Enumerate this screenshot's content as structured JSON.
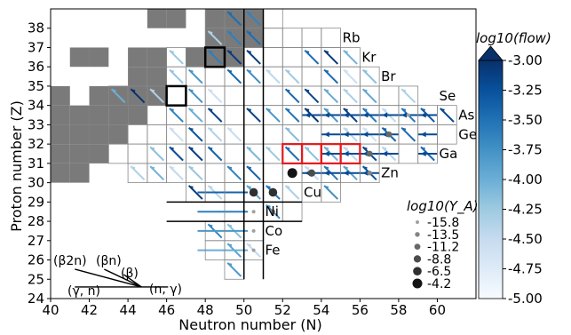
{
  "chart_data": {
    "type": "heatmap",
    "xlabel": "Neutron number (N)",
    "ylabel": "Proton number (Z)",
    "xlim": [
      40,
      62
    ],
    "ylim": [
      24,
      39
    ],
    "xticks": [
      "40",
      "42",
      "44",
      "46",
      "48",
      "50",
      "52",
      "54",
      "56",
      "58",
      "60"
    ],
    "xtick_values": [
      40,
      42,
      44,
      46,
      48,
      50,
      52,
      54,
      56,
      58,
      60
    ],
    "yticks": [
      "24",
      "25",
      "26",
      "27",
      "28",
      "29",
      "30",
      "31",
      "32",
      "33",
      "34",
      "35",
      "36",
      "37",
      "38"
    ],
    "ytick_values": [
      24,
      25,
      26,
      27,
      28,
      29,
      30,
      31,
      32,
      33,
      34,
      35,
      36,
      37,
      38
    ],
    "magic_numbers": {
      "neutron": 50,
      "proton": 28
    },
    "element_labels": [
      {
        "symbol": "Rb",
        "z": 37,
        "n": 55
      },
      {
        "symbol": "Kr",
        "z": 36,
        "n": 56
      },
      {
        "symbol": "Br",
        "z": 35,
        "n": 57
      },
      {
        "symbol": "Se",
        "z": 34,
        "n": 60
      },
      {
        "symbol": "As",
        "z": 33,
        "n": 61
      },
      {
        "symbol": "Ge",
        "z": 32,
        "n": 61
      },
      {
        "symbol": "Ga",
        "z": 31,
        "n": 60
      },
      {
        "symbol": "Zn",
        "z": 30,
        "n": 57
      },
      {
        "symbol": "Cu",
        "z": 29,
        "n": 53
      },
      {
        "symbol": "Ni",
        "z": 28,
        "n": 51
      },
      {
        "symbol": "Co",
        "z": 27,
        "n": 51
      },
      {
        "symbol": "Fe",
        "z": 26,
        "n": 51
      }
    ],
    "unknown_mass_cells": [
      [
        45,
        38
      ],
      [
        46,
        38
      ],
      [
        48,
        38
      ],
      [
        49,
        38
      ],
      [
        50,
        38
      ],
      [
        48,
        37
      ],
      [
        49,
        37
      ],
      [
        50,
        37
      ],
      [
        41,
        36
      ],
      [
        42,
        36
      ],
      [
        44,
        36
      ],
      [
        45,
        36
      ],
      [
        47,
        36
      ],
      [
        48,
        36
      ],
      [
        49,
        36
      ],
      [
        44,
        35
      ],
      [
        45,
        35
      ],
      [
        40,
        34
      ],
      [
        42,
        34
      ],
      [
        43,
        34
      ],
      [
        44,
        34
      ],
      [
        45,
        34
      ],
      [
        40,
        33
      ],
      [
        41,
        33
      ],
      [
        42,
        33
      ],
      [
        43,
        33
      ],
      [
        44,
        33
      ],
      [
        40,
        32
      ],
      [
        41,
        32
      ],
      [
        42,
        32
      ],
      [
        43,
        32
      ],
      [
        40,
        31
      ],
      [
        41,
        31
      ],
      [
        42,
        31
      ],
      [
        40,
        30
      ],
      [
        41,
        30
      ]
    ],
    "highlight_black": [
      [
        46,
        34
      ],
      [
        48,
        36
      ]
    ],
    "highlight_red": [
      [
        52,
        31
      ],
      [
        53,
        31
      ],
      [
        54,
        31
      ],
      [
        55,
        31
      ]
    ],
    "colorbar": {
      "label": "log10(flow)",
      "range": [
        -5.0,
        -3.0
      ],
      "ticks": [
        "-3.00",
        "-3.25",
        "-3.50",
        "-3.75",
        "-4.00",
        "-4.25",
        "-4.50",
        "-4.75",
        "-5.00"
      ],
      "tick_values": [
        -3.0,
        -3.25,
        -3.5,
        -3.75,
        -4.0,
        -4.25,
        -4.5,
        -4.75,
        -5.0
      ],
      "colormap": "Blues",
      "extend": "max"
    },
    "abundance_legend": {
      "title": "log10(Y_A)",
      "entries": [
        "-15.8",
        "-13.5",
        "-11.2",
        "-8.8",
        "-6.5",
        "-4.2"
      ]
    },
    "abundance_dots": [
      {
        "n": 52,
        "z": 30,
        "log_y": -4.2
      },
      {
        "n": 51,
        "z": 29,
        "log_y": -6.5
      },
      {
        "n": 50,
        "z": 29,
        "log_y": -6.5
      },
      {
        "n": 53,
        "z": 30,
        "log_y": -8.8
      },
      {
        "n": 56,
        "z": 31,
        "log_y": -11.2
      },
      {
        "n": 57,
        "z": 32,
        "log_y": -11.2
      },
      {
        "n": 56,
        "z": 30,
        "log_y": -13.5
      },
      {
        "n": 58,
        "z": 33,
        "log_y": -15.8
      },
      {
        "n": 50,
        "z": 27,
        "log_y": -15.8
      },
      {
        "n": 50,
        "z": 26,
        "log_y": -15.8
      },
      {
        "n": 50,
        "z": 28,
        "log_y": -15.8
      },
      {
        "n": 51,
        "z": 28,
        "log_y": -13.5
      }
    ],
    "reaction_key": {
      "labels": [
        "(β2n)",
        "(βn)",
        "(β)",
        "(γ, n)",
        "(n, γ)"
      ]
    }
  }
}
